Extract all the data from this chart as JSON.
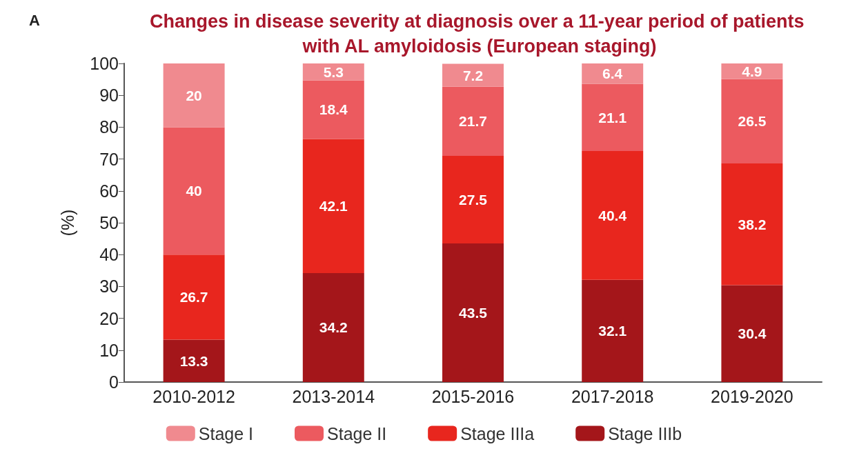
{
  "chart_data": {
    "type": "bar",
    "title": "Changes in disease severity at diagnosis over a 11-year period of patients with AL amyloidosis (European staging)",
    "ylabel": "(%)",
    "annotations": [
      "A"
    ],
    "categories": [
      "2010-2012",
      "2013-2014",
      "2015-2016",
      "2017-2018",
      "2019-2020"
    ],
    "stacked": true,
    "data_labels": true,
    "legend": "bottom",
    "grid": false,
    "ylim": [
      0,
      100
    ],
    "yticks": [
      0,
      10,
      20,
      30,
      40,
      50,
      60,
      70,
      80,
      90,
      100
    ],
    "series": [
      {
        "name": "Stage IIIb",
        "color": "#a4161a",
        "values": [
          13.3,
          34.2,
          43.5,
          32.1,
          30.4
        ]
      },
      {
        "name": "Stage IIIa",
        "color": "#e8261e",
        "values": [
          26.7,
          42.1,
          27.5,
          40.4,
          38.2
        ]
      },
      {
        "name": "Stage II",
        "color": "#ec5a5f",
        "values": [
          40,
          18.4,
          21.7,
          21.1,
          26.5
        ]
      },
      {
        "name": "Stage I",
        "color": "#f08a8f",
        "values": [
          20,
          5.3,
          7.2,
          6.4,
          4.9
        ]
      }
    ]
  }
}
